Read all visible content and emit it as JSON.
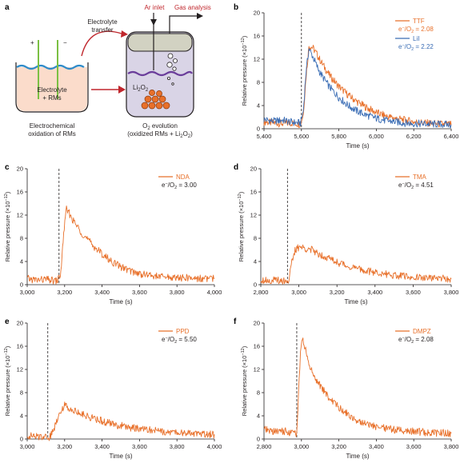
{
  "panels": {
    "a": {
      "letter": "a",
      "labels": {
        "electrolyte_transfer_1": "Electrolyte",
        "electrolyte_transfer_2": "transfer",
        "ar_inlet": "Ar inlet",
        "gas_analysis": "Gas analysis",
        "electrolyte_1": "Electrolyte",
        "electrolyte_2": "+ RMs",
        "plus": "+",
        "minus": "−",
        "li2o2_main": "Li",
        "li2o2_sub1": "2",
        "li2o2_mid": "O",
        "li2o2_sub2": "2",
        "oxid_1": "Electrochemical",
        "oxid_2": "oxidation of RMs",
        "evol_1a": "O",
        "evol_1sub": "2",
        "evol_1b": " evolution",
        "evol_2a": "(oxidized RMs + Li",
        "evol_2sub1": "2",
        "evol_2b": "O",
        "evol_2sub2": "2",
        "evol_2c": ")"
      }
    }
  },
  "colors": {
    "orange": "#e8702a",
    "blue": "#3a6db5",
    "red": "#c0272d",
    "bath_fill": "#fbdccb",
    "cell_fill": "#d9d4e6",
    "lid_fill": "#d2d2c2",
    "wave_blue": "#2e8bc9",
    "wave_purple": "#6a3d9a",
    "electrode_green": "#7bc043"
  },
  "chart_data": [
    {
      "id": "b",
      "letter": "b",
      "type": "line",
      "xlabel": "Time (s)",
      "ylabel": "Relative pressure (×10",
      "ylabel_exp": "−12",
      "ylabel_end": ")",
      "xlim": [
        5400,
        6400
      ],
      "ylim": [
        0,
        20
      ],
      "xticks": [
        5400,
        5600,
        5800,
        6000,
        6200,
        6400
      ],
      "xtick_labels": [
        "5,400",
        "5,600",
        "5,800",
        "6,000",
        "6,200",
        "6,400"
      ],
      "yticks": [
        0,
        4,
        8,
        12,
        16,
        20
      ],
      "ytick_labels": [
        "0",
        "4",
        "8",
        "12",
        "16",
        "20"
      ],
      "dashed_x": 5600,
      "series": [
        {
          "name": "TTF",
          "ratio_label": "e",
          "ratio_value": "= 2.08",
          "color": "#e8702a",
          "points": [
            [
              5400,
              1.2
            ],
            [
              5450,
              1.0
            ],
            [
              5500,
              0.9
            ],
            [
              5550,
              1.0
            ],
            [
              5595,
              0.8
            ],
            [
              5610,
              2.5
            ],
            [
              5625,
              9
            ],
            [
              5640,
              14.3
            ],
            [
              5660,
              14.0
            ],
            [
              5680,
              13.0
            ],
            [
              5700,
              11.8
            ],
            [
              5750,
              9.2
            ],
            [
              5800,
              7.3
            ],
            [
              5850,
              5.8
            ],
            [
              5900,
              4.6
            ],
            [
              5950,
              3.6
            ],
            [
              6000,
              2.8
            ],
            [
              6050,
              2.2
            ],
            [
              6100,
              1.8
            ],
            [
              6150,
              1.5
            ],
            [
              6200,
              1.2
            ],
            [
              6300,
              0.9
            ],
            [
              6400,
              0.7
            ]
          ]
        },
        {
          "name": "LiI",
          "ratio_label": "e",
          "ratio_value": "= 2.22",
          "color": "#3a6db5",
          "points": [
            [
              5400,
              1.6
            ],
            [
              5450,
              1.3
            ],
            [
              5500,
              1.5
            ],
            [
              5550,
              1.1
            ],
            [
              5595,
              1.0
            ],
            [
              5610,
              3.0
            ],
            [
              5625,
              10
            ],
            [
              5640,
              13.8
            ],
            [
              5660,
              12.5
            ],
            [
              5680,
              11.0
            ],
            [
              5700,
              9.6
            ],
            [
              5750,
              7.2
            ],
            [
              5800,
              5.4
            ],
            [
              5850,
              4.0
            ],
            [
              5900,
              3.0
            ],
            [
              5950,
              2.3
            ],
            [
              6000,
              1.8
            ],
            [
              6050,
              1.4
            ],
            [
              6100,
              1.2
            ],
            [
              6150,
              1.0
            ],
            [
              6200,
              0.9
            ],
            [
              6300,
              0.8
            ],
            [
              6400,
              0.7
            ]
          ]
        }
      ]
    },
    {
      "id": "c",
      "letter": "c",
      "type": "line",
      "xlabel": "Time (s)",
      "ylabel": "Relative pressure (×10",
      "ylabel_exp": "−12",
      "ylabel_end": ")",
      "xlim": [
        3000,
        4000
      ],
      "ylim": [
        0,
        20
      ],
      "xticks": [
        3000,
        3200,
        3400,
        3600,
        3800,
        4000
      ],
      "xtick_labels": [
        "3,000",
        "3,200",
        "3,400",
        "3,600",
        "3,800",
        "4,000"
      ],
      "yticks": [
        0,
        4,
        8,
        12,
        16,
        20
      ],
      "ytick_labels": [
        "0",
        "4",
        "8",
        "12",
        "16",
        "20"
      ],
      "dashed_x": 3170,
      "series": [
        {
          "name": "NDA",
          "ratio_label": "e",
          "ratio_value": "= 3.00",
          "color": "#e8702a",
          "points": [
            [
              3000,
              1.0
            ],
            [
              3050,
              0.8
            ],
            [
              3100,
              0.9
            ],
            [
              3160,
              0.6
            ],
            [
              3180,
              2.0
            ],
            [
              3195,
              9
            ],
            [
              3210,
              13.0
            ],
            [
              3230,
              12.0
            ],
            [
              3250,
              10.8
            ],
            [
              3300,
              8.6
            ],
            [
              3350,
              6.8
            ],
            [
              3400,
              5.3
            ],
            [
              3450,
              4.0
            ],
            [
              3500,
              3.1
            ],
            [
              3550,
              2.4
            ],
            [
              3600,
              1.9
            ],
            [
              3700,
              1.4
            ],
            [
              3800,
              1.2
            ],
            [
              3900,
              1.1
            ],
            [
              4000,
              1.0
            ]
          ]
        }
      ]
    },
    {
      "id": "d",
      "letter": "d",
      "type": "line",
      "xlabel": "Time (s)",
      "ylabel": "Relative pressure (×10",
      "ylabel_exp": "−12",
      "ylabel_end": ")",
      "xlim": [
        2800,
        3800
      ],
      "ylim": [
        0,
        20
      ],
      "xticks": [
        2800,
        3000,
        3200,
        3400,
        3600,
        3800
      ],
      "xtick_labels": [
        "2,800",
        "3,000",
        "3,200",
        "3,400",
        "3,600",
        "3,800"
      ],
      "yticks": [
        0,
        4,
        8,
        12,
        16,
        20
      ],
      "ytick_labels": [
        "0",
        "4",
        "8",
        "12",
        "16",
        "20"
      ],
      "dashed_x": 2940,
      "series": [
        {
          "name": "TMA",
          "ratio_label": "e",
          "ratio_value": "= 4.51",
          "color": "#e8702a",
          "points": [
            [
              2800,
              0.9
            ],
            [
              2850,
              0.7
            ],
            [
              2900,
              0.8
            ],
            [
              2945,
              0.6
            ],
            [
              2960,
              3.5
            ],
            [
              2980,
              5.8
            ],
            [
              3000,
              6.5
            ],
            [
              3030,
              6.3
            ],
            [
              3060,
              6.1
            ],
            [
              3100,
              5.4
            ],
            [
              3150,
              4.7
            ],
            [
              3200,
              3.9
            ],
            [
              3250,
              3.3
            ],
            [
              3300,
              2.8
            ],
            [
              3350,
              2.4
            ],
            [
              3400,
              2.1
            ],
            [
              3500,
              1.6
            ],
            [
              3600,
              1.3
            ],
            [
              3700,
              1.1
            ],
            [
              3800,
              1.0
            ]
          ]
        }
      ]
    },
    {
      "id": "e",
      "letter": "e",
      "type": "line",
      "xlabel": "Time (s)",
      "ylabel": "Relative pressure (×10",
      "ylabel_exp": "−12",
      "ylabel_end": ")",
      "xlim": [
        3000,
        4000
      ],
      "ylim": [
        0,
        20
      ],
      "xticks": [
        3000,
        3200,
        3400,
        3600,
        3800,
        4000
      ],
      "xtick_labels": [
        "3,000",
        "3,200",
        "3,400",
        "3,600",
        "3,800",
        "4,000"
      ],
      "yticks": [
        0,
        4,
        8,
        12,
        16,
        20
      ],
      "ytick_labels": [
        "0",
        "4",
        "8",
        "12",
        "16",
        "20"
      ],
      "dashed_x": 3110,
      "series": [
        {
          "name": "PPD",
          "ratio_label": "e",
          "ratio_value": "= 5.50",
          "color": "#e8702a",
          "points": [
            [
              3000,
              0.6
            ],
            [
              3050,
              0.4
            ],
            [
              3100,
              0.5
            ],
            [
              3120,
              0.3
            ],
            [
              3140,
              1.5
            ],
            [
              3160,
              3.5
            ],
            [
              3180,
              5.0
            ],
            [
              3200,
              5.8
            ],
            [
              3230,
              5.3
            ],
            [
              3260,
              4.8
            ],
            [
              3300,
              4.2
            ],
            [
              3350,
              3.6
            ],
            [
              3400,
              3.1
            ],
            [
              3450,
              2.6
            ],
            [
              3500,
              2.3
            ],
            [
              3550,
              2.0
            ],
            [
              3600,
              1.8
            ],
            [
              3700,
              1.4
            ],
            [
              3800,
              1.1
            ],
            [
              3900,
              0.9
            ],
            [
              4000,
              0.8
            ]
          ]
        }
      ]
    },
    {
      "id": "f",
      "letter": "f",
      "type": "line",
      "xlabel": "Time (s)",
      "ylabel": "Relative pressure (×10",
      "ylabel_exp": "−12",
      "ylabel_end": ")",
      "xlim": [
        2800,
        3800
      ],
      "ylim": [
        0,
        20
      ],
      "xticks": [
        2800,
        3000,
        3200,
        3400,
        3600,
        3800
      ],
      "xtick_labels": [
        "2,800",
        "3,000",
        "3,200",
        "3,400",
        "3,600",
        "3,800"
      ],
      "yticks": [
        0,
        4,
        8,
        12,
        16,
        20
      ],
      "ytick_labels": [
        "0",
        "4",
        "8",
        "12",
        "16",
        "20"
      ],
      "dashed_x": 2975,
      "series": [
        {
          "name": "DMPZ",
          "ratio_label": "e",
          "ratio_value": "= 2.08",
          "color": "#e8702a",
          "points": [
            [
              2800,
              1.6
            ],
            [
              2850,
              1.3
            ],
            [
              2900,
              1.4
            ],
            [
              2950,
              1.1
            ],
            [
              2975,
              1.0
            ],
            [
              2985,
              8
            ],
            [
              2995,
              15
            ],
            [
              3005,
              17.2
            ],
            [
              3020,
              15.8
            ],
            [
              3040,
              13.0
            ],
            [
              3060,
              11.2
            ],
            [
              3080,
              10.3
            ],
            [
              3100,
              9.2
            ],
            [
              3150,
              7.0
            ],
            [
              3200,
              5.4
            ],
            [
              3250,
              4.2
            ],
            [
              3300,
              3.2
            ],
            [
              3350,
              2.6
            ],
            [
              3400,
              2.1
            ],
            [
              3500,
              1.6
            ],
            [
              3600,
              1.3
            ],
            [
              3700,
              1.1
            ],
            [
              3800,
              1.0
            ]
          ]
        }
      ]
    }
  ]
}
